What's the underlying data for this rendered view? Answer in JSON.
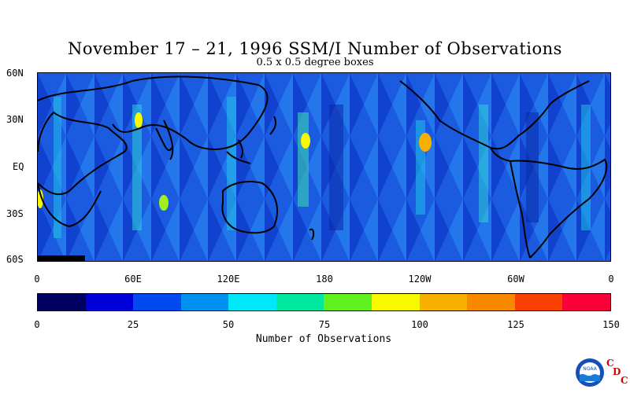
{
  "title": "November 17 – 21, 1996 SSM/I Number of Observations",
  "subtitle": "0.5 x 0.5 degree boxes",
  "map": {
    "lat_labels": [
      "60N",
      "30N",
      "EQ",
      "30S",
      "60S"
    ],
    "lon_labels": [
      "0",
      "60E",
      "120E",
      "180",
      "120W",
      "60W",
      "0"
    ],
    "lat_range": [
      -60,
      60
    ],
    "lon_range": [
      0,
      360
    ]
  },
  "colorbar": {
    "title": "Number of Observations",
    "tick_labels": [
      "0",
      "25",
      "50",
      "75",
      "100",
      "125",
      "150"
    ],
    "range": [
      0,
      150
    ],
    "colors": [
      "#000060",
      "#0000d8",
      "#0048f0",
      "#0090f0",
      "#00e8f8",
      "#00e8a0",
      "#60f020",
      "#f8f800",
      "#f8b000",
      "#f88800",
      "#f84000",
      "#f80038"
    ]
  },
  "logo": {
    "icon": "noaa-logo-icon",
    "text": "NOAA",
    "badge": [
      "C",
      "D",
      "C"
    ]
  }
}
